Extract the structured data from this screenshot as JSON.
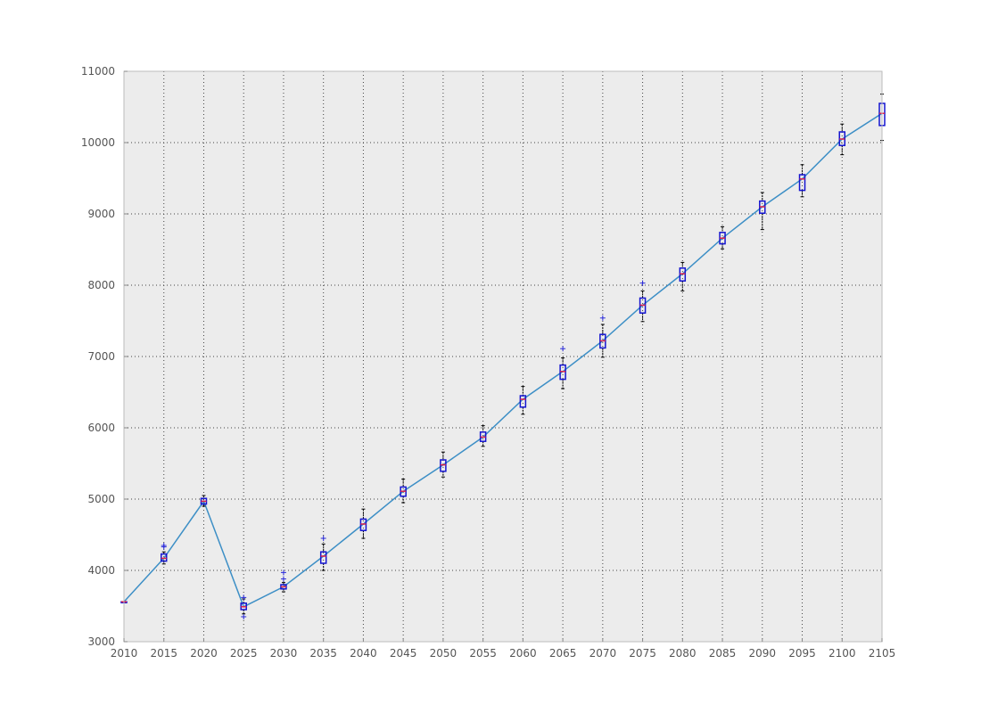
{
  "chart_data": {
    "type": "box",
    "title": "",
    "xlabel": "",
    "ylabel": "",
    "xlim": [
      2010,
      2105
    ],
    "ylim": [
      3000,
      11000
    ],
    "grid": true,
    "legend": "none",
    "x_ticks": [
      2010,
      2015,
      2020,
      2025,
      2030,
      2035,
      2040,
      2045,
      2050,
      2055,
      2060,
      2065,
      2070,
      2075,
      2080,
      2085,
      2090,
      2095,
      2100,
      2105
    ],
    "y_ticks": [
      3000,
      4000,
      5000,
      6000,
      7000,
      8000,
      9000,
      10000,
      11000
    ],
    "x_tick_labels": [
      "2010",
      "2015",
      "2020",
      "2025",
      "2030",
      "2035",
      "2040",
      "2045",
      "2050",
      "2055",
      "2060",
      "2065",
      "2070",
      "2075",
      "2080",
      "2085",
      "2090",
      "2095",
      "2100",
      "2105"
    ],
    "y_tick_labels": [
      "3000",
      "4000",
      "5000",
      "6000",
      "7000",
      "8000",
      "9000",
      "10000",
      "11000"
    ],
    "line": {
      "x": [
        2010,
        2015,
        2020,
        2025,
        2030,
        2035,
        2040,
        2045,
        2050,
        2055,
        2060,
        2065,
        2070,
        2075,
        2080,
        2085,
        2090,
        2095,
        2100,
        2105
      ],
      "y": [
        3560,
        4170,
        4970,
        3490,
        3770,
        4200,
        4650,
        5110,
        5480,
        5870,
        6400,
        6790,
        7220,
        7720,
        8160,
        8660,
        9100,
        9490,
        10050,
        10410
      ]
    },
    "boxes": [
      {
        "x": 2010,
        "q1": 3560,
        "median": 3560,
        "q3": 3560,
        "low": 3560,
        "high": 3560,
        "outliers": []
      },
      {
        "x": 2015,
        "q1": 4130,
        "median": 4170,
        "q3": 4230,
        "low": 4090,
        "high": 4260,
        "outliers": [
          4330,
          4350
        ]
      },
      {
        "x": 2020,
        "q1": 4930,
        "median": 4970,
        "q3": 5010,
        "low": 4900,
        "high": 5050,
        "outliers": []
      },
      {
        "x": 2025,
        "q1": 3450,
        "median": 3490,
        "q3": 3540,
        "low": 3390,
        "high": 3600,
        "outliers": [
          3350,
          3620
        ]
      },
      {
        "x": 2030,
        "q1": 3740,
        "median": 3770,
        "q3": 3800,
        "low": 3700,
        "high": 3830,
        "outliers": [
          3880,
          3970
        ]
      },
      {
        "x": 2035,
        "q1": 4100,
        "median": 4200,
        "q3": 4260,
        "low": 4000,
        "high": 4370,
        "outliers": [
          4450
        ]
      },
      {
        "x": 2040,
        "q1": 4560,
        "median": 4650,
        "q3": 4720,
        "low": 4450,
        "high": 4860,
        "outliers": []
      },
      {
        "x": 2045,
        "q1": 5040,
        "median": 5110,
        "q3": 5170,
        "low": 4950,
        "high": 5280,
        "outliers": []
      },
      {
        "x": 2050,
        "q1": 5390,
        "median": 5480,
        "q3": 5550,
        "low": 5310,
        "high": 5660,
        "outliers": []
      },
      {
        "x": 2055,
        "q1": 5810,
        "median": 5870,
        "q3": 5940,
        "low": 5740,
        "high": 6030,
        "outliers": []
      },
      {
        "x": 2060,
        "q1": 6290,
        "median": 6400,
        "q3": 6450,
        "low": 6190,
        "high": 6580,
        "outliers": []
      },
      {
        "x": 2065,
        "q1": 6680,
        "median": 6790,
        "q3": 6880,
        "low": 6550,
        "high": 6980,
        "outliers": [
          7110
        ]
      },
      {
        "x": 2070,
        "q1": 7120,
        "median": 7220,
        "q3": 7310,
        "low": 6990,
        "high": 7450,
        "outliers": [
          7540
        ]
      },
      {
        "x": 2075,
        "q1": 7610,
        "median": 7720,
        "q3": 7820,
        "low": 7490,
        "high": 7920,
        "outliers": [
          8030
        ]
      },
      {
        "x": 2080,
        "q1": 8060,
        "median": 8160,
        "q3": 8240,
        "low": 7920,
        "high": 8320,
        "outliers": []
      },
      {
        "x": 2085,
        "q1": 8580,
        "median": 8660,
        "q3": 8740,
        "low": 8510,
        "high": 8820,
        "outliers": []
      },
      {
        "x": 2090,
        "q1": 9010,
        "median": 9100,
        "q3": 9180,
        "low": 8780,
        "high": 9300,
        "outliers": []
      },
      {
        "x": 2095,
        "q1": 9330,
        "median": 9490,
        "q3": 9550,
        "low": 9240,
        "high": 9690,
        "outliers": []
      },
      {
        "x": 2100,
        "q1": 9960,
        "median": 10050,
        "q3": 10150,
        "low": 9830,
        "high": 10260,
        "outliers": []
      },
      {
        "x": 2105,
        "q1": 10240,
        "median": 10410,
        "q3": 10550,
        "low": 10030,
        "high": 10680,
        "outliers": []
      }
    ],
    "colors": {
      "plot_background": "#ececec",
      "line": "#3d8fc6",
      "box": "#1414d0",
      "median": "#e0204a",
      "whisker": "#000000",
      "outlier": "#2a2adb",
      "grid": "#444444",
      "axis": "#bbbbbb"
    }
  }
}
